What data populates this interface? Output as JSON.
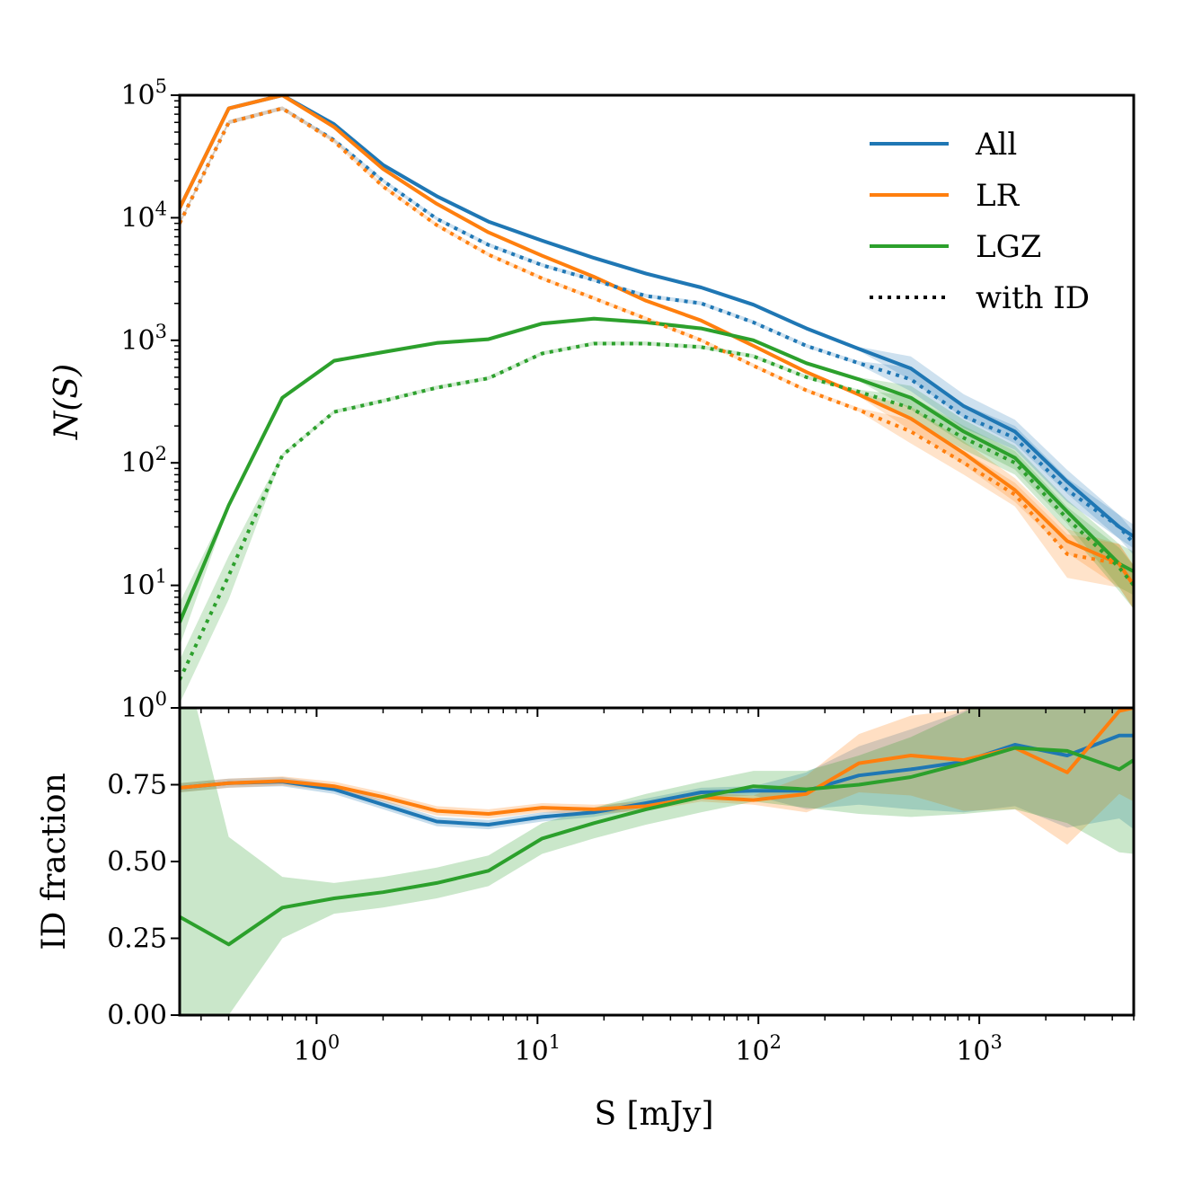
{
  "chart_data": [
    {
      "type": "line",
      "panel": "counts",
      "xscale": "log",
      "yscale": "log",
      "xlim": [
        0.24,
        5000
      ],
      "ylim": [
        1,
        100000
      ],
      "ylabel": "N(S)",
      "y_tick_labels": [
        "10^0",
        "10^1",
        "10^2",
        "10^3",
        "10^4",
        "10^5"
      ],
      "legend_position": "top-right",
      "legend": [
        {
          "label": "All",
          "color": "#1f77b4",
          "style": "solid"
        },
        {
          "label": "LR",
          "color": "#ff7f0e",
          "style": "solid"
        },
        {
          "label": "LGZ",
          "color": "#2ca02c",
          "style": "solid"
        },
        {
          "label": "with ID",
          "color": "#000000",
          "style": "dotted"
        }
      ],
      "x": [
        0.24,
        0.4,
        0.7,
        1.2,
        2.0,
        3.5,
        6.0,
        10.5,
        18,
        31,
        55,
        95,
        165,
        285,
        490,
        850,
        1450,
        2500,
        4300,
        5000
      ],
      "series": [
        {
          "name": "All",
          "color": "#1f77b4",
          "style": "solid",
          "values": [
            12000,
            78000,
            100000,
            58000,
            27000,
            15000,
            9300,
            6500,
            4700,
            3500,
            2700,
            1950,
            1250,
            850,
            590,
            290,
            180,
            70,
            30,
            25
          ]
        },
        {
          "name": "LR",
          "color": "#ff7f0e",
          "style": "solid",
          "values": [
            12000,
            78000,
            100000,
            55000,
            25000,
            13000,
            7600,
            4900,
            3300,
            2100,
            1450,
            900,
            550,
            360,
            230,
            120,
            60,
            23,
            15,
            10
          ]
        },
        {
          "name": "LGZ",
          "color": "#2ca02c",
          "style": "solid",
          "values": [
            5,
            45,
            340,
            680,
            800,
            950,
            1020,
            1370,
            1500,
            1400,
            1250,
            1000,
            650,
            480,
            340,
            180,
            110,
            40,
            15,
            13
          ]
        },
        {
          "color": "#1f77b4",
          "style": "dotted",
          "values": [
            9000,
            60000,
            78000,
            43000,
            20000,
            9800,
            6000,
            4100,
            3100,
            2300,
            2000,
            1400,
            900,
            650,
            480,
            240,
            160,
            60,
            30,
            22
          ]
        },
        {
          "color": "#ff7f0e",
          "style": "dotted",
          "values": [
            9000,
            60000,
            78000,
            42000,
            18000,
            8700,
            5000,
            3200,
            2200,
            1500,
            1000,
            620,
            390,
            270,
            180,
            100,
            55,
            18,
            15,
            10
          ]
        },
        {
          "color": "#2ca02c",
          "style": "dotted",
          "values": [
            1.7,
            12,
            115,
            260,
            320,
            410,
            490,
            780,
            940,
            940,
            880,
            740,
            500,
            380,
            280,
            160,
            100,
            35,
            14,
            10
          ]
        }
      ]
    },
    {
      "type": "line",
      "panel": "fraction",
      "xscale": "log",
      "xlim": [
        0.24,
        5000
      ],
      "ylim": [
        0,
        1
      ],
      "xlabel": "S [mJy]",
      "ylabel": "ID fraction",
      "y_tick_labels": [
        "0.00",
        "0.25",
        "0.50",
        "0.75",
        "1.00"
      ],
      "x_tick_labels": [
        "10^0",
        "10^1",
        "10^2",
        "10^3"
      ],
      "x": [
        0.24,
        0.4,
        0.7,
        1.2,
        2.0,
        3.5,
        6.0,
        10.5,
        18,
        31,
        55,
        95,
        165,
        285,
        490,
        850,
        1450,
        2500,
        4300,
        5000
      ],
      "series": [
        {
          "name": "All",
          "color": "#1f77b4",
          "values": [
            0.74,
            0.755,
            0.76,
            0.735,
            0.685,
            0.63,
            0.62,
            0.645,
            0.66,
            0.69,
            0.725,
            0.73,
            0.73,
            0.78,
            0.8,
            0.825,
            0.88,
            0.845,
            0.91,
            0.91
          ]
        },
        {
          "name": "LR",
          "color": "#ff7f0e",
          "values": [
            0.74,
            0.755,
            0.762,
            0.745,
            0.71,
            0.665,
            0.655,
            0.675,
            0.67,
            0.68,
            0.71,
            0.7,
            0.72,
            0.82,
            0.845,
            0.83,
            0.87,
            0.79,
            0.99,
            1.0
          ]
        },
        {
          "name": "LGZ",
          "color": "#2ca02c",
          "values": [
            0.32,
            0.23,
            0.35,
            0.38,
            0.4,
            0.43,
            0.47,
            0.575,
            0.625,
            0.67,
            0.71,
            0.745,
            0.735,
            0.75,
            0.775,
            0.82,
            0.87,
            0.86,
            0.8,
            0.83
          ]
        }
      ]
    }
  ]
}
